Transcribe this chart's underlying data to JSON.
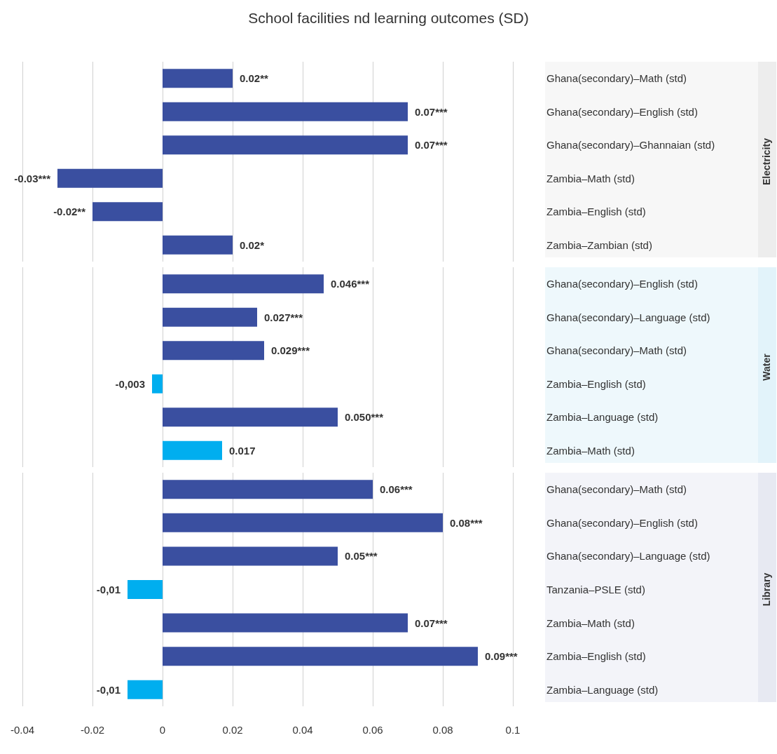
{
  "chart_data": [
    {
      "type": "bar",
      "orientation": "horizontal",
      "title": "School facilities nd learning outcomes (SD)",
      "ylabel": "Electricity",
      "categories": [
        "Ghana(secondary)–Math (std)",
        "Ghana(secondary)–English (std)",
        "Ghana(secondary)–Ghannaian (std)",
        "Zambia–Math (std)",
        "Zambia–English (std)",
        "Zambia–Zambian (std)"
      ],
      "values": [
        0.02,
        0.07,
        0.07,
        -0.03,
        -0.02,
        0.02
      ],
      "value_labels": [
        "0.02**",
        "0.07***",
        "0.07***",
        "-0.03***",
        "-0.02**",
        "0.02*"
      ],
      "colors": [
        "#3a4fa0",
        "#3a4fa0",
        "#3a4fa0",
        "#3a4fa0",
        "#3a4fa0",
        "#3a4fa0"
      ],
      "xlim": [
        -0.04,
        0.1
      ],
      "xticks": [
        -0.04,
        -0.02,
        0,
        0.02,
        0.04,
        0.06,
        0.08,
        0.1
      ],
      "tick_labels": "y",
      "grid": "x"
    },
    {
      "type": "bar",
      "orientation": "horizontal",
      "ylabel": "Water",
      "categories": [
        "Ghana(secondary)–English (std)",
        "Ghana(secondary)–Language (std)",
        "Ghana(secondary)–Math (std)",
        "Zambia–English (std)",
        "Zambia–Language (std)",
        "Zambia–Math (std)"
      ],
      "values": [
        0.046,
        0.027,
        0.029,
        -0.003,
        0.05,
        0.017
      ],
      "value_labels": [
        "0.046***",
        "0.027***",
        "0.029***",
        "-0,003",
        "0.050***",
        "0.017"
      ],
      "colors": [
        "#3a4fa0",
        "#3a4fa0",
        "#3a4fa0",
        "#00aeef",
        "#3a4fa0",
        "#00aeef"
      ],
      "xlim": [
        -0.04,
        0.1
      ],
      "xticks": [
        -0.04,
        -0.02,
        0,
        0.02,
        0.04,
        0.06,
        0.08,
        0.1
      ],
      "tick_labels": "y",
      "grid": "x"
    },
    {
      "type": "bar",
      "orientation": "horizontal",
      "ylabel": "Library",
      "categories": [
        "Ghana(secondary)–Math (std)",
        "Ghana(secondary)–English (std)",
        "Ghana(secondary)–Language (std)",
        "Tanzania–PSLE (std)",
        "Zambia–Math (std)",
        "Zambia–English (std)",
        "Zambia–Language (std)"
      ],
      "values": [
        0.06,
        0.08,
        0.05,
        -0.01,
        0.07,
        0.09,
        -0.01
      ],
      "value_labels": [
        "0.06***",
        "0.08***",
        "0.05***",
        "-0,01",
        "0.07***",
        "0.09***",
        "-0,01"
      ],
      "colors": [
        "#3a4fa0",
        "#3a4fa0",
        "#3a4fa0",
        "#00aeef",
        "#3a4fa0",
        "#3a4fa0",
        "#00aeef"
      ],
      "xlim": [
        -0.04,
        0.1
      ],
      "xticks": [
        -0.04,
        -0.02,
        0,
        0.02,
        0.04,
        0.06,
        0.08,
        0.1
      ],
      "grid": "x"
    }
  ]
}
